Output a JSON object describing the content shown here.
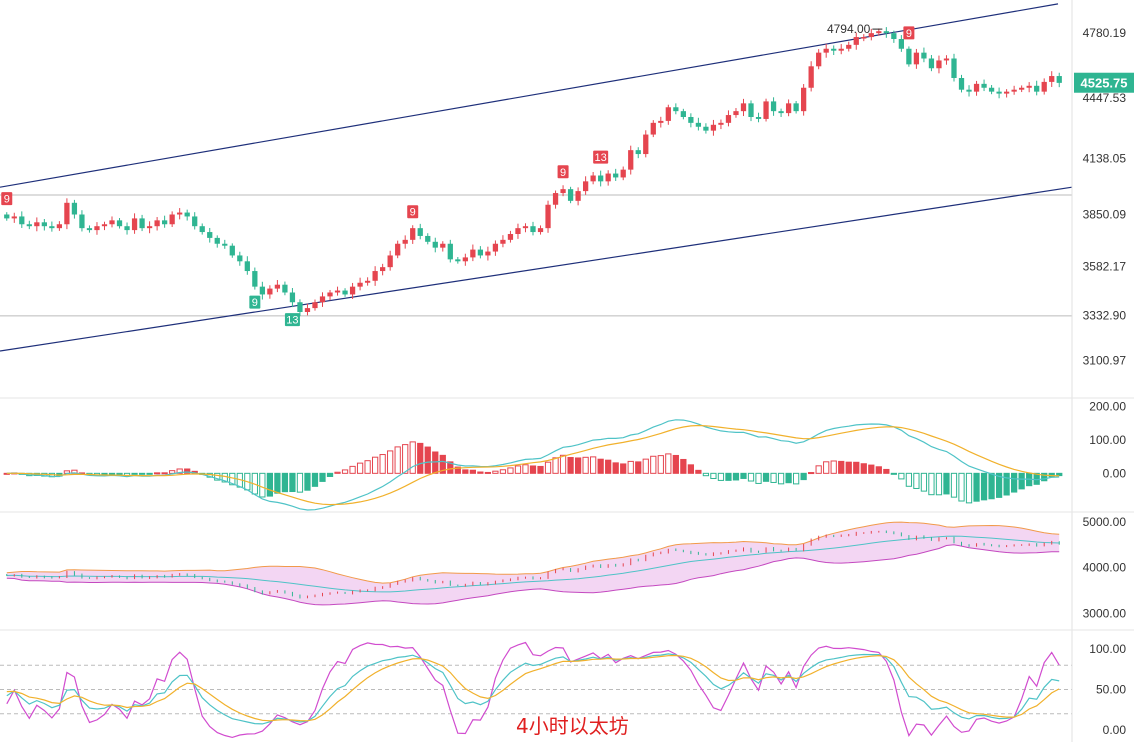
{
  "caption": "4小时以太坊",
  "colors": {
    "up": "#e5454f",
    "down": "#2fb592",
    "channel": "#1e2f7a",
    "macd_dif": "#4fc3c7",
    "macd_dea": "#f1b12c",
    "boll_band": "#f3d6f3",
    "boll_upper": "#f19a4a",
    "boll_lower": "#c449c0",
    "boll_mid": "#4fc3c7",
    "kdj_k": "#4fc3c7",
    "kdj_d": "#f1b12c",
    "kdj_j": "#d14ccf",
    "price_tag": "#2fb592"
  },
  "chart_data": [
    {
      "type": "candlestick",
      "panel": "price",
      "y_ticks": [
        "4780.19",
        "4447.53",
        "4138.05",
        "3850.09",
        "3582.17",
        "3332.90",
        "3100.97"
      ],
      "ylim": [
        2950,
        4950
      ],
      "current_price": "4525.75",
      "high_marker": "4794.00",
      "horizontal_levels": [
        3950,
        3330
      ],
      "channel_upper": [
        3990,
        4930
      ],
      "channel_lower": [
        3150,
        3990
      ],
      "seq_labels_up": [
        {
          "index": 0,
          "text": "9"
        },
        {
          "index": 54,
          "text": "9"
        },
        {
          "index": 74,
          "text": "9"
        },
        {
          "index": 79,
          "text": "13"
        },
        {
          "index": 120,
          "text": "9"
        }
      ],
      "seq_labels_down": [
        {
          "index": 33,
          "text": "9"
        },
        {
          "index": 38,
          "text": "13"
        }
      ],
      "closes": [
        3830,
        3840,
        3800,
        3790,
        3810,
        3790,
        3780,
        3800,
        3910,
        3850,
        3780,
        3770,
        3790,
        3800,
        3820,
        3790,
        3770,
        3830,
        3780,
        3790,
        3820,
        3800,
        3850,
        3860,
        3840,
        3790,
        3760,
        3730,
        3700,
        3690,
        3640,
        3610,
        3560,
        3480,
        3440,
        3470,
        3490,
        3450,
        3400,
        3350,
        3370,
        3400,
        3430,
        3450,
        3460,
        3440,
        3480,
        3500,
        3510,
        3560,
        3580,
        3640,
        3700,
        3720,
        3780,
        3740,
        3710,
        3680,
        3700,
        3620,
        3610,
        3630,
        3670,
        3640,
        3660,
        3700,
        3720,
        3750,
        3780,
        3790,
        3760,
        3780,
        3900,
        3960,
        3980,
        3920,
        3970,
        4020,
        4050,
        4020,
        4060,
        4040,
        4080,
        4180,
        4160,
        4260,
        4320,
        4330,
        4400,
        4380,
        4350,
        4320,
        4300,
        4280,
        4310,
        4320,
        4360,
        4380,
        4420,
        4350,
        4340,
        4430,
        4380,
        4370,
        4420,
        4380,
        4500,
        4610,
        4680,
        4700,
        4690,
        4700,
        4720,
        4760,
        4760,
        4780,
        4790,
        4780,
        4750,
        4700,
        4620,
        4680,
        4650,
        4600,
        4640,
        4650,
        4550,
        4490,
        4480,
        4520,
        4500,
        4480,
        4470,
        4480,
        4490,
        4500,
        4510,
        4480,
        4530,
        4560,
        4525
      ]
    },
    {
      "type": "bar",
      "panel": "macd",
      "y_ticks": [
        "200.00",
        "100.00",
        "0.00"
      ],
      "ylim": [
        -110,
        220
      ]
    },
    {
      "type": "area",
      "panel": "bollinger",
      "y_ticks": [
        "5000.00",
        "4000.00",
        "3000.00"
      ],
      "ylim": [
        2750,
        5150
      ]
    },
    {
      "type": "line",
      "panel": "kdj",
      "y_ticks": [
        "100.00",
        "50.00",
        "0.00"
      ],
      "ylim": [
        -10,
        120
      ]
    }
  ]
}
